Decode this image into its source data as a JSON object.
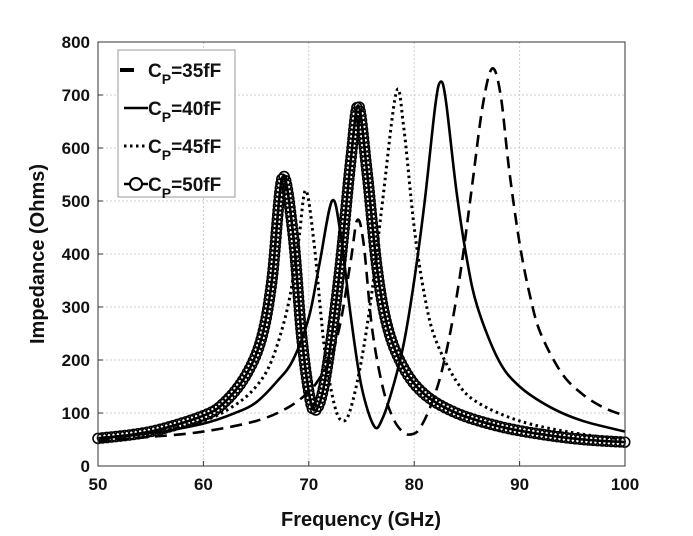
{
  "chart_data": {
    "type": "line",
    "title": "",
    "xlabel": "Frequency (GHz)",
    "ylabel": "Impedance (Ohms)",
    "xlim": [
      50,
      100
    ],
    "ylim": [
      0,
      800
    ],
    "xticks": [
      50,
      60,
      70,
      80,
      90,
      100
    ],
    "yticks": [
      0,
      100,
      200,
      300,
      400,
      500,
      600,
      700,
      800
    ],
    "grid": true,
    "legend_placement": "top-left",
    "series": [
      {
        "name": "CP=35fF",
        "label_base": "C",
        "label_sub": "P",
        "label_rest": "=35fF",
        "style": "dashed",
        "points": [
          [
            50,
            48
          ],
          [
            55,
            55
          ],
          [
            60,
            65
          ],
          [
            65,
            85
          ],
          [
            68,
            110
          ],
          [
            70,
            140
          ],
          [
            71,
            165
          ],
          [
            72,
            200
          ],
          [
            73,
            270
          ],
          [
            74,
            390
          ],
          [
            74.6,
            464
          ],
          [
            75.2,
            420
          ],
          [
            76,
            260
          ],
          [
            77,
            150
          ],
          [
            78,
            90
          ],
          [
            79,
            63
          ],
          [
            79.8,
            60
          ],
          [
            80.5,
            70
          ],
          [
            81.5,
            110
          ],
          [
            82.5,
            170
          ],
          [
            83.5,
            260
          ],
          [
            84.5,
            380
          ],
          [
            85.5,
            530
          ],
          [
            86.5,
            680
          ],
          [
            87.4,
            750
          ],
          [
            88.2,
            700
          ],
          [
            89,
            560
          ],
          [
            90,
            420
          ],
          [
            91,
            320
          ],
          [
            92,
            250
          ],
          [
            94,
            175
          ],
          [
            96,
            135
          ],
          [
            98,
            110
          ],
          [
            100,
            95
          ]
        ]
      },
      {
        "name": "CP=40fF",
        "label_base": "C",
        "label_sub": "P",
        "label_rest": "=40fF",
        "style": "solid",
        "points": [
          [
            50,
            52
          ],
          [
            55,
            62
          ],
          [
            60,
            80
          ],
          [
            63,
            100
          ],
          [
            65,
            120
          ],
          [
            67,
            160
          ],
          [
            68.5,
            200
          ],
          [
            70,
            280
          ],
          [
            71,
            380
          ],
          [
            72.2,
            500
          ],
          [
            73,
            440
          ],
          [
            74,
            280
          ],
          [
            75,
            150
          ],
          [
            76.2,
            75
          ],
          [
            77,
            90
          ],
          [
            78,
            150
          ],
          [
            79,
            230
          ],
          [
            80,
            350
          ],
          [
            81,
            500
          ],
          [
            82,
            680
          ],
          [
            82.5,
            725
          ],
          [
            83,
            690
          ],
          [
            84,
            520
          ],
          [
            85,
            390
          ],
          [
            86,
            300
          ],
          [
            88,
            200
          ],
          [
            90,
            150
          ],
          [
            93,
            110
          ],
          [
            96,
            85
          ],
          [
            100,
            65
          ]
        ]
      },
      {
        "name": "CP=45fF",
        "label_base": "C",
        "label_sub": "P",
        "label_rest": "=45fF",
        "style": "dotted",
        "points": [
          [
            50,
            52
          ],
          [
            55,
            63
          ],
          [
            60,
            85
          ],
          [
            63,
            115
          ],
          [
            65,
            150
          ],
          [
            66.5,
            200
          ],
          [
            68,
            300
          ],
          [
            69,
            420
          ],
          [
            69.7,
            520
          ],
          [
            70.5,
            420
          ],
          [
            71.5,
            220
          ],
          [
            72.5,
            110
          ],
          [
            73.3,
            85
          ],
          [
            74,
            110
          ],
          [
            75,
            200
          ],
          [
            76,
            330
          ],
          [
            77,
            500
          ],
          [
            78.3,
            705
          ],
          [
            79,
            640
          ],
          [
            80,
            450
          ],
          [
            81,
            320
          ],
          [
            82,
            240
          ],
          [
            84,
            160
          ],
          [
            86,
            120
          ],
          [
            90,
            85
          ],
          [
            95,
            63
          ],
          [
            100,
            50
          ]
        ]
      },
      {
        "name": "CP=50fF",
        "label_base": "C",
        "label_sub": "P",
        "label_rest": "=50fF",
        "style": "circles",
        "points": [
          [
            50,
            52
          ],
          [
            55,
            65
          ],
          [
            60,
            95
          ],
          [
            62,
            120
          ],
          [
            64,
            170
          ],
          [
            65.5,
            240
          ],
          [
            66.5,
            350
          ],
          [
            67.5,
            545
          ],
          [
            68.5,
            440
          ],
          [
            69.3,
            250
          ],
          [
            70,
            140
          ],
          [
            70.5,
            105
          ],
          [
            71.2,
            130
          ],
          [
            72,
            220
          ],
          [
            73,
            380
          ],
          [
            74,
            580
          ],
          [
            74.7,
            680
          ],
          [
            75.5,
            560
          ],
          [
            76.5,
            370
          ],
          [
            77.5,
            260
          ],
          [
            79,
            185
          ],
          [
            81,
            135
          ],
          [
            84,
            100
          ],
          [
            88,
            75
          ],
          [
            92,
            60
          ],
          [
            96,
            50
          ],
          [
            100,
            45
          ]
        ]
      }
    ]
  }
}
